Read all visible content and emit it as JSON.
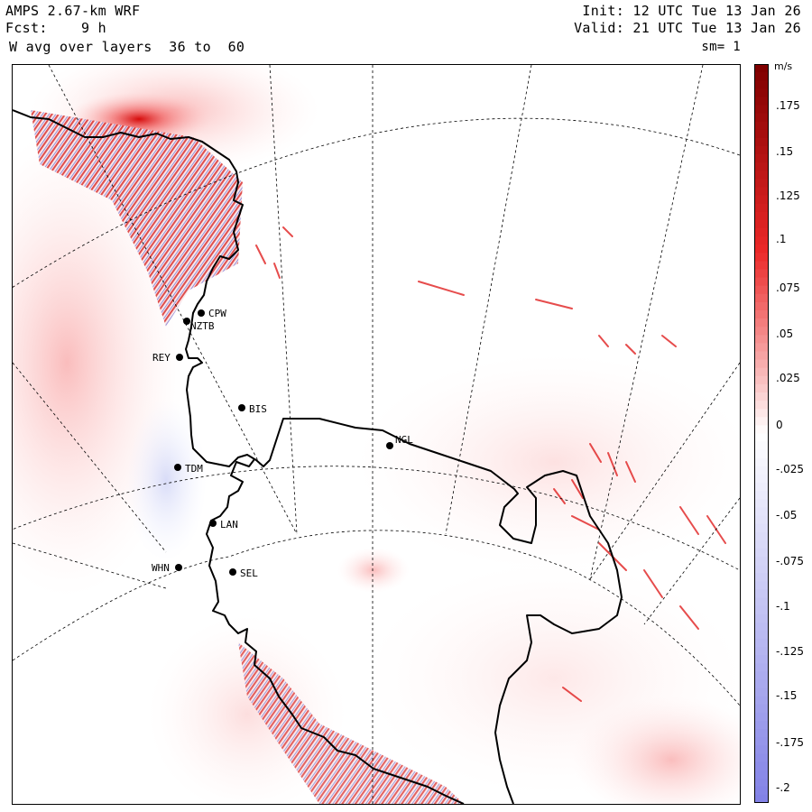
{
  "header": {
    "left_line1": "AMPS 2.67-km WRF",
    "left_line2": "Fcst:    9 h",
    "left_line3": "W avg over layers  36 to  60",
    "right_line1": "Init: 12 UTC Tue 13 Jan 26",
    "right_line2": "Valid: 21 UTC Tue 13 Jan 26",
    "right_line3": "sm= 1"
  },
  "colorbar": {
    "unit": "m/s",
    "labels": [
      ".175",
      ".15",
      ".125",
      ".1",
      ".075",
      ".05",
      ".025",
      "0",
      "-.025",
      "-.05",
      "-.075",
      "-.1",
      "-.125",
      "-.15",
      "-.175",
      "-.2"
    ],
    "positive_color": "#8b0000",
    "zero_color": "#ffffff",
    "negative_color": "#8080e0"
  },
  "stations": [
    {
      "code": "CPW"
    },
    {
      "code": "NZTB"
    },
    {
      "code": "REY"
    },
    {
      "code": "BIS"
    },
    {
      "code": "TDM"
    },
    {
      "code": "NGL"
    },
    {
      "code": "LAN"
    },
    {
      "code": "WHN"
    },
    {
      "code": "SEL"
    }
  ]
}
